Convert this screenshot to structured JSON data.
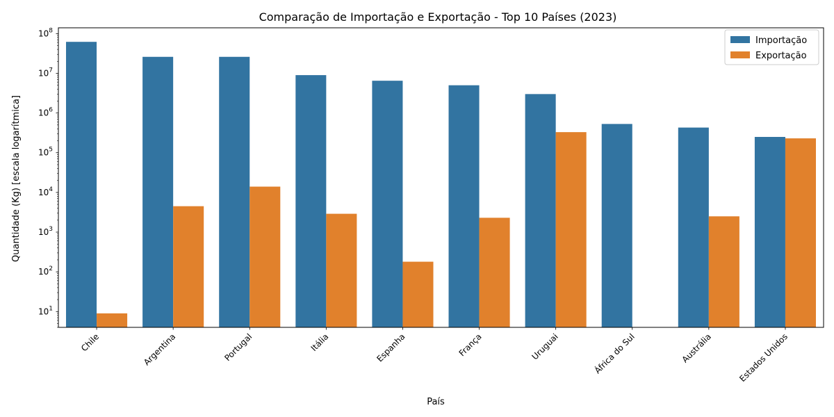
{
  "chart_data": {
    "type": "bar",
    "title": "Comparação de Importação e Exportação - Top 10 Países (2023)",
    "xlabel": "País",
    "ylabel": "Quantidade (Kg) [escala logarítmica]",
    "yscale": "log",
    "ylim": [
      4,
      140000000
    ],
    "yticks": [
      {
        "value": 10,
        "base": "10",
        "exp": "1"
      },
      {
        "value": 100,
        "base": "10",
        "exp": "2"
      },
      {
        "value": 1000,
        "base": "10",
        "exp": "3"
      },
      {
        "value": 10000,
        "base": "10",
        "exp": "4"
      },
      {
        "value": 100000,
        "base": "10",
        "exp": "5"
      },
      {
        "value": 1000000,
        "base": "10",
        "exp": "6"
      },
      {
        "value": 10000000,
        "base": "10",
        "exp": "7"
      },
      {
        "value": 100000000,
        "base": "10",
        "exp": "8"
      }
    ],
    "categories": [
      "Chile",
      "Argentina",
      "Portugal",
      "Itália",
      "Espanha",
      "França",
      "Uruguai",
      "África do Sul",
      "Austrália",
      "Estados Unidos"
    ],
    "series": [
      {
        "name": "Importação",
        "color": "#3274a1",
        "values": [
          62000000,
          26000000,
          26000000,
          9000000,
          6500000,
          5000000,
          3000000,
          530000,
          430000,
          250000
        ]
      },
      {
        "name": "Exportação",
        "color": "#e1812c",
        "values": [
          9,
          4500,
          14000,
          2900,
          180,
          2300,
          330000,
          null,
          2500,
          230000
        ]
      }
    ],
    "legend": "top-right",
    "grid": false
  }
}
